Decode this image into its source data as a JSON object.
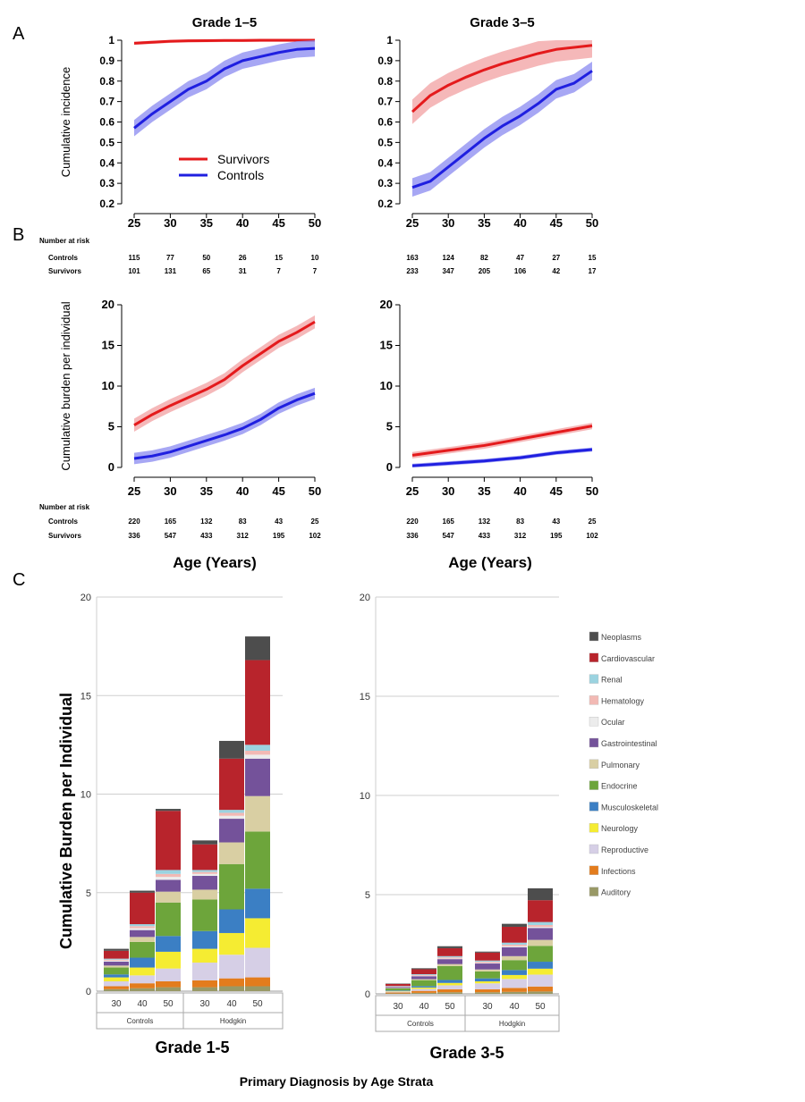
{
  "panel_labels": {
    "a": "A",
    "b": "B",
    "c": "C"
  },
  "colors": {
    "survivors": "#e41a1c",
    "survivors_band": "#f2a0a2",
    "controls": "#1f1fe0",
    "controls_band": "#8a8af0",
    "grid": "#cfcfcf",
    "axis": "#000000"
  },
  "legend": {
    "survivors": "Survivors",
    "controls": "Controls"
  },
  "risk_header": "Number at risk",
  "risk_labels": {
    "controls": "Controls",
    "survivors": "Survivors"
  },
  "age_xlabel": "Age (Years)",
  "c_xlabel": "Primary Diagnosis by Age Strata",
  "chart_data": [
    {
      "id": "A1",
      "type": "line",
      "title": "Grade 1–5",
      "xlabel": "",
      "ylabel": "Cumulative incidence",
      "xlim": [
        25,
        50
      ],
      "ylim": [
        0.2,
        1.0
      ],
      "xticks": [
        25,
        30,
        35,
        40,
        45,
        50
      ],
      "yticks": [
        0.2,
        0.3,
        0.4,
        0.5,
        0.6,
        0.7,
        0.8,
        0.9,
        1.0
      ],
      "ytick_labels": [
        "0.2",
        "0.3",
        "0.4",
        "0.5",
        "0.6",
        "0.7",
        "0.8",
        "0.9",
        "1"
      ],
      "x": [
        25,
        27.5,
        30,
        32.5,
        35,
        37.5,
        40,
        42.5,
        45,
        47.5,
        50
      ],
      "series": [
        {
          "name": "Survivors",
          "values": [
            0.985,
            0.99,
            0.995,
            0.997,
            0.998,
            0.999,
            0.999,
            1.0,
            1.0,
            1.0,
            1.0
          ],
          "band": 0.008
        },
        {
          "name": "Controls",
          "values": [
            0.57,
            0.64,
            0.7,
            0.76,
            0.8,
            0.86,
            0.9,
            0.92,
            0.94,
            0.955,
            0.96
          ],
          "band": 0.04
        }
      ],
      "risk": {
        "controls": [
          "115",
          "77",
          "50",
          "26",
          "15",
          "10"
        ],
        "survivors": [
          "101",
          "131",
          "65",
          "31",
          "7",
          "7"
        ]
      }
    },
    {
      "id": "A2",
      "type": "line",
      "title": "Grade 3–5",
      "xlabel": "",
      "ylabel": "",
      "xlim": [
        25,
        50
      ],
      "ylim": [
        0.2,
        1.0
      ],
      "xticks": [
        25,
        30,
        35,
        40,
        45,
        50
      ],
      "yticks": [
        0.2,
        0.3,
        0.4,
        0.5,
        0.6,
        0.7,
        0.8,
        0.9,
        1.0
      ],
      "ytick_labels": [
        "0.2",
        "0.3",
        "0.4",
        "0.5",
        "0.6",
        "0.7",
        "0.8",
        "0.9",
        "1"
      ],
      "x": [
        25,
        27.5,
        30,
        32.5,
        35,
        37.5,
        40,
        42.5,
        45,
        47.5,
        50
      ],
      "series": [
        {
          "name": "Survivors",
          "values": [
            0.65,
            0.73,
            0.78,
            0.82,
            0.855,
            0.885,
            0.91,
            0.935,
            0.955,
            0.965,
            0.975
          ],
          "band": 0.06
        },
        {
          "name": "Controls",
          "values": [
            0.28,
            0.31,
            0.38,
            0.45,
            0.52,
            0.58,
            0.63,
            0.69,
            0.76,
            0.79,
            0.85
          ],
          "band": 0.045
        }
      ],
      "risk": {
        "controls": [
          "163",
          "124",
          "82",
          "47",
          "27",
          "15"
        ],
        "survivors": [
          "233",
          "347",
          "205",
          "106",
          "42",
          "17"
        ]
      }
    },
    {
      "id": "B1",
      "type": "line",
      "title": "",
      "xlabel": "Age (Years)",
      "ylabel": "Cumulative burden per individual",
      "xlim": [
        25,
        50
      ],
      "ylim": [
        0,
        20
      ],
      "xticks": [
        25,
        30,
        35,
        40,
        45,
        50
      ],
      "yticks": [
        0,
        5,
        10,
        15,
        20
      ],
      "ytick_labels": [
        "0",
        "5",
        "10",
        "15",
        "20"
      ],
      "x": [
        25,
        27.5,
        30,
        32.5,
        35,
        37.5,
        40,
        42.5,
        45,
        47.5,
        50
      ],
      "series": [
        {
          "name": "Survivors",
          "values": [
            5.2,
            6.5,
            7.6,
            8.6,
            9.6,
            10.8,
            12.5,
            14.0,
            15.5,
            16.6,
            17.9
          ],
          "band": 0.8
        },
        {
          "name": "Controls",
          "values": [
            1.1,
            1.4,
            1.9,
            2.6,
            3.3,
            4.0,
            4.8,
            5.9,
            7.3,
            8.3,
            9.1
          ],
          "band": 0.7
        }
      ],
      "risk": {
        "controls": [
          "220",
          "165",
          "132",
          "83",
          "43",
          "25"
        ],
        "survivors": [
          "336",
          "547",
          "433",
          "312",
          "195",
          "102"
        ]
      }
    },
    {
      "id": "B2",
      "type": "line",
      "title": "",
      "xlabel": "Age (Years)",
      "ylabel": "",
      "xlim": [
        25,
        50
      ],
      "ylim": [
        0,
        20
      ],
      "xticks": [
        25,
        30,
        35,
        40,
        45,
        50
      ],
      "yticks": [
        0,
        5,
        10,
        15,
        20
      ],
      "ytick_labels": [
        "0",
        "5",
        "10",
        "15",
        "20"
      ],
      "x": [
        25,
        27.5,
        30,
        32.5,
        35,
        37.5,
        40,
        42.5,
        45,
        47.5,
        50
      ],
      "series": [
        {
          "name": "Survivors",
          "values": [
            1.5,
            1.8,
            2.1,
            2.4,
            2.7,
            3.1,
            3.5,
            3.9,
            4.3,
            4.7,
            5.1
          ],
          "band": 0.4
        },
        {
          "name": "Controls",
          "values": [
            0.2,
            0.35,
            0.5,
            0.65,
            0.8,
            1.0,
            1.2,
            1.5,
            1.8,
            2.0,
            2.2
          ],
          "band": 0.25
        }
      ],
      "risk": {
        "controls": [
          "220",
          "165",
          "132",
          "83",
          "43",
          "25"
        ],
        "survivors": [
          "336",
          "547",
          "433",
          "312",
          "195",
          "102"
        ]
      }
    },
    {
      "id": "C1",
      "type": "bar",
      "stacked": true,
      "title": "Grade 1-5",
      "ylabel": "Cumulative Burden per Individual",
      "ylim": [
        0,
        20
      ],
      "yticks": [
        0,
        5,
        10,
        15,
        20
      ],
      "groups": [
        {
          "name": "Controls",
          "categories": [
            "30",
            "40",
            "50"
          ]
        },
        {
          "name": "Hodgkin",
          "categories": [
            "30",
            "40",
            "50"
          ]
        }
      ],
      "series": [
        {
          "name": "Auditory",
          "values": [
            0.1,
            0.15,
            0.2,
            0.2,
            0.25,
            0.25
          ]
        },
        {
          "name": "Infections",
          "values": [
            0.15,
            0.25,
            0.3,
            0.35,
            0.4,
            0.45
          ]
        },
        {
          "name": "Reproductive",
          "values": [
            0.25,
            0.4,
            0.65,
            0.9,
            1.2,
            1.5
          ]
        },
        {
          "name": "Neurology",
          "values": [
            0.2,
            0.4,
            0.85,
            0.7,
            1.1,
            1.5
          ]
        },
        {
          "name": "Musculoskeletal",
          "values": [
            0.15,
            0.5,
            0.8,
            0.9,
            1.2,
            1.5
          ]
        },
        {
          "name": "Endocrine",
          "values": [
            0.35,
            0.8,
            1.7,
            1.6,
            2.3,
            2.9
          ]
        },
        {
          "name": "Pulmonary",
          "values": [
            0.1,
            0.25,
            0.55,
            0.5,
            1.1,
            1.8
          ]
        },
        {
          "name": "Gastrointestinal",
          "values": [
            0.2,
            0.35,
            0.6,
            0.7,
            1.2,
            1.9
          ]
        },
        {
          "name": "Ocular",
          "values": [
            0.05,
            0.1,
            0.15,
            0.1,
            0.15,
            0.2
          ]
        },
        {
          "name": "Hematology",
          "values": [
            0.05,
            0.1,
            0.15,
            0.1,
            0.15,
            0.2
          ]
        },
        {
          "name": "Renal",
          "values": [
            0.05,
            0.1,
            0.2,
            0.1,
            0.15,
            0.3
          ]
        },
        {
          "name": "Cardiovascular",
          "values": [
            0.4,
            1.6,
            3.0,
            1.3,
            2.6,
            4.3
          ]
        },
        {
          "name": "Neoplasms",
          "values": [
            0.1,
            0.1,
            0.1,
            0.2,
            0.9,
            1.2
          ]
        }
      ]
    },
    {
      "id": "C2",
      "type": "bar",
      "stacked": true,
      "title": "Grade 3-5",
      "ylabel": "",
      "ylim": [
        0,
        20
      ],
      "yticks": [
        0,
        5,
        10,
        15,
        20
      ],
      "groups": [
        {
          "name": "Controls",
          "categories": [
            "30",
            "40",
            "50"
          ]
        },
        {
          "name": "Hodgkin",
          "categories": [
            "30",
            "40",
            "50"
          ]
        }
      ],
      "series": [
        {
          "name": "Auditory",
          "values": [
            0.02,
            0.05,
            0.08,
            0.08,
            0.1,
            0.12
          ]
        },
        {
          "name": "Infections",
          "values": [
            0.05,
            0.1,
            0.15,
            0.15,
            0.2,
            0.25
          ]
        },
        {
          "name": "Reproductive",
          "values": [
            0.05,
            0.1,
            0.2,
            0.3,
            0.45,
            0.6
          ]
        },
        {
          "name": "Neurology",
          "values": [
            0.03,
            0.07,
            0.12,
            0.1,
            0.2,
            0.3
          ]
        },
        {
          "name": "Musculoskeletal",
          "values": [
            0.03,
            0.07,
            0.15,
            0.15,
            0.25,
            0.35
          ]
        },
        {
          "name": "Endocrine",
          "values": [
            0.1,
            0.3,
            0.7,
            0.35,
            0.5,
            0.8
          ]
        },
        {
          "name": "Pulmonary",
          "values": [
            0.02,
            0.05,
            0.1,
            0.1,
            0.2,
            0.3
          ]
        },
        {
          "name": "Gastrointestinal",
          "values": [
            0.05,
            0.15,
            0.25,
            0.3,
            0.45,
            0.6
          ]
        },
        {
          "name": "Ocular",
          "values": [
            0.01,
            0.02,
            0.03,
            0.03,
            0.05,
            0.05
          ]
        },
        {
          "name": "Hematology",
          "values": [
            0.02,
            0.04,
            0.06,
            0.06,
            0.08,
            0.1
          ]
        },
        {
          "name": "Renal",
          "values": [
            0.02,
            0.04,
            0.06,
            0.06,
            0.1,
            0.15
          ]
        },
        {
          "name": "Cardiovascular",
          "values": [
            0.1,
            0.25,
            0.4,
            0.4,
            0.8,
            1.1
          ]
        },
        {
          "name": "Neoplasms",
          "values": [
            0.02,
            0.05,
            0.1,
            0.05,
            0.15,
            0.6
          ]
        }
      ]
    }
  ],
  "stack_legend": [
    {
      "name": "Neoplasms",
      "color": "#4d4d4d"
    },
    {
      "name": "Cardiovascular",
      "color": "#b8242c"
    },
    {
      "name": "Renal",
      "color": "#9bd3e0"
    },
    {
      "name": "Hematology",
      "color": "#f2b9b4"
    },
    {
      "name": "Ocular",
      "color": "#ececec"
    },
    {
      "name": "Gastrointestinal",
      "color": "#74529a"
    },
    {
      "name": "Pulmonary",
      "color": "#d9cfa3"
    },
    {
      "name": "Endocrine",
      "color": "#6da53b"
    },
    {
      "name": "Musculoskeletal",
      "color": "#3b7fc4"
    },
    {
      "name": "Neurology",
      "color": "#f5ec32"
    },
    {
      "name": "Reproductive",
      "color": "#d6cfe6"
    },
    {
      "name": "Infections",
      "color": "#e37c1d"
    },
    {
      "name": "Auditory",
      "color": "#999966"
    }
  ]
}
